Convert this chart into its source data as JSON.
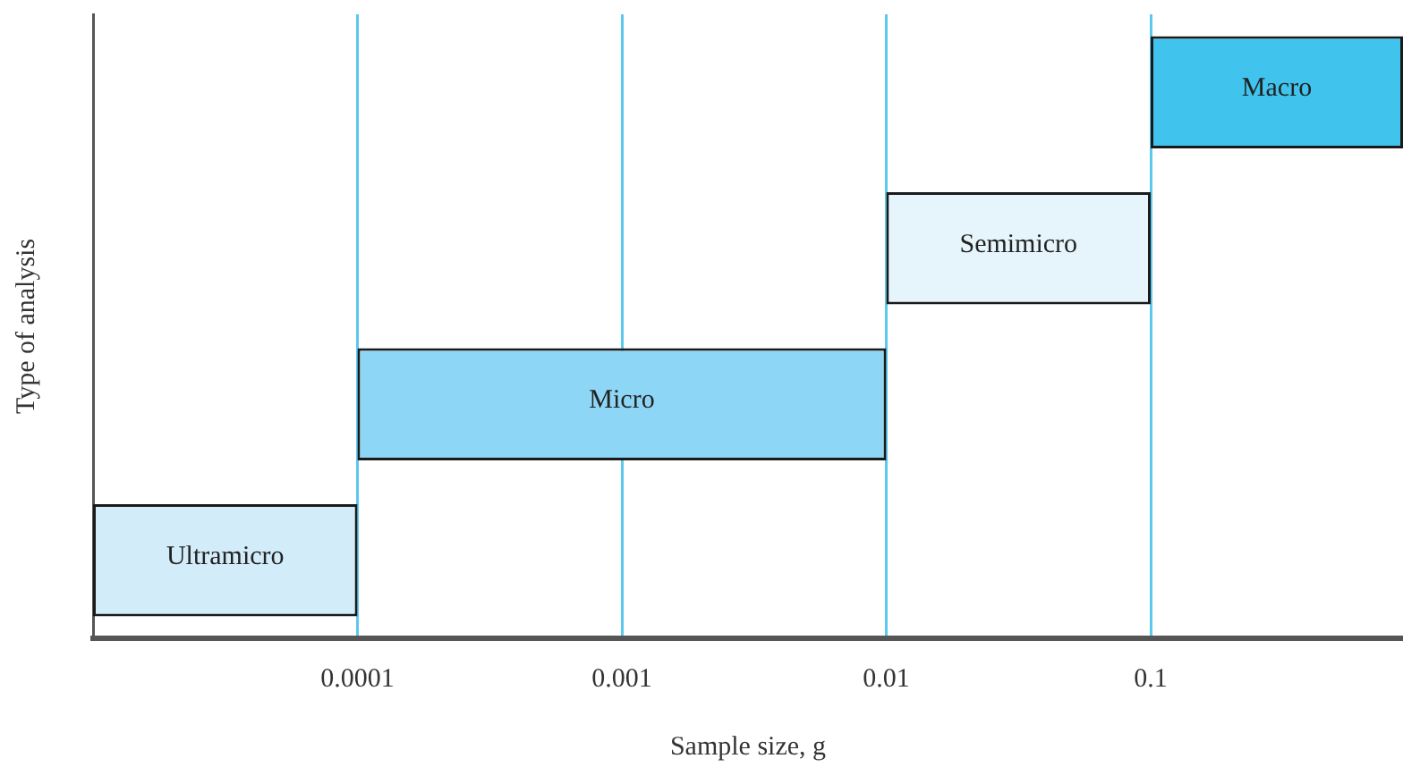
{
  "chart_data": {
    "type": "bar",
    "orientation": "horizontal",
    "xlabel": "Sample size, g",
    "ylabel": "Type of analysis",
    "categories": [
      "Macro",
      "Semimicro",
      "Micro",
      "Ultramicro"
    ],
    "base": [
      0.1,
      0.01,
      0.0001,
      1e-05
    ],
    "values": [
      0.8,
      0.09,
      0.0099,
      9e-05
    ],
    "colors": [
      "#40c4ee",
      "#e6f5fc",
      "#8ed6f5",
      "#d2ecf9"
    ],
    "log": "x",
    "xlim": [
      1e-05,
      0.9
    ],
    "xticks": [
      0.0001,
      0.001,
      0.01,
      0.1
    ],
    "grid": "x",
    "tick_labels": "x",
    "legend": false
  }
}
